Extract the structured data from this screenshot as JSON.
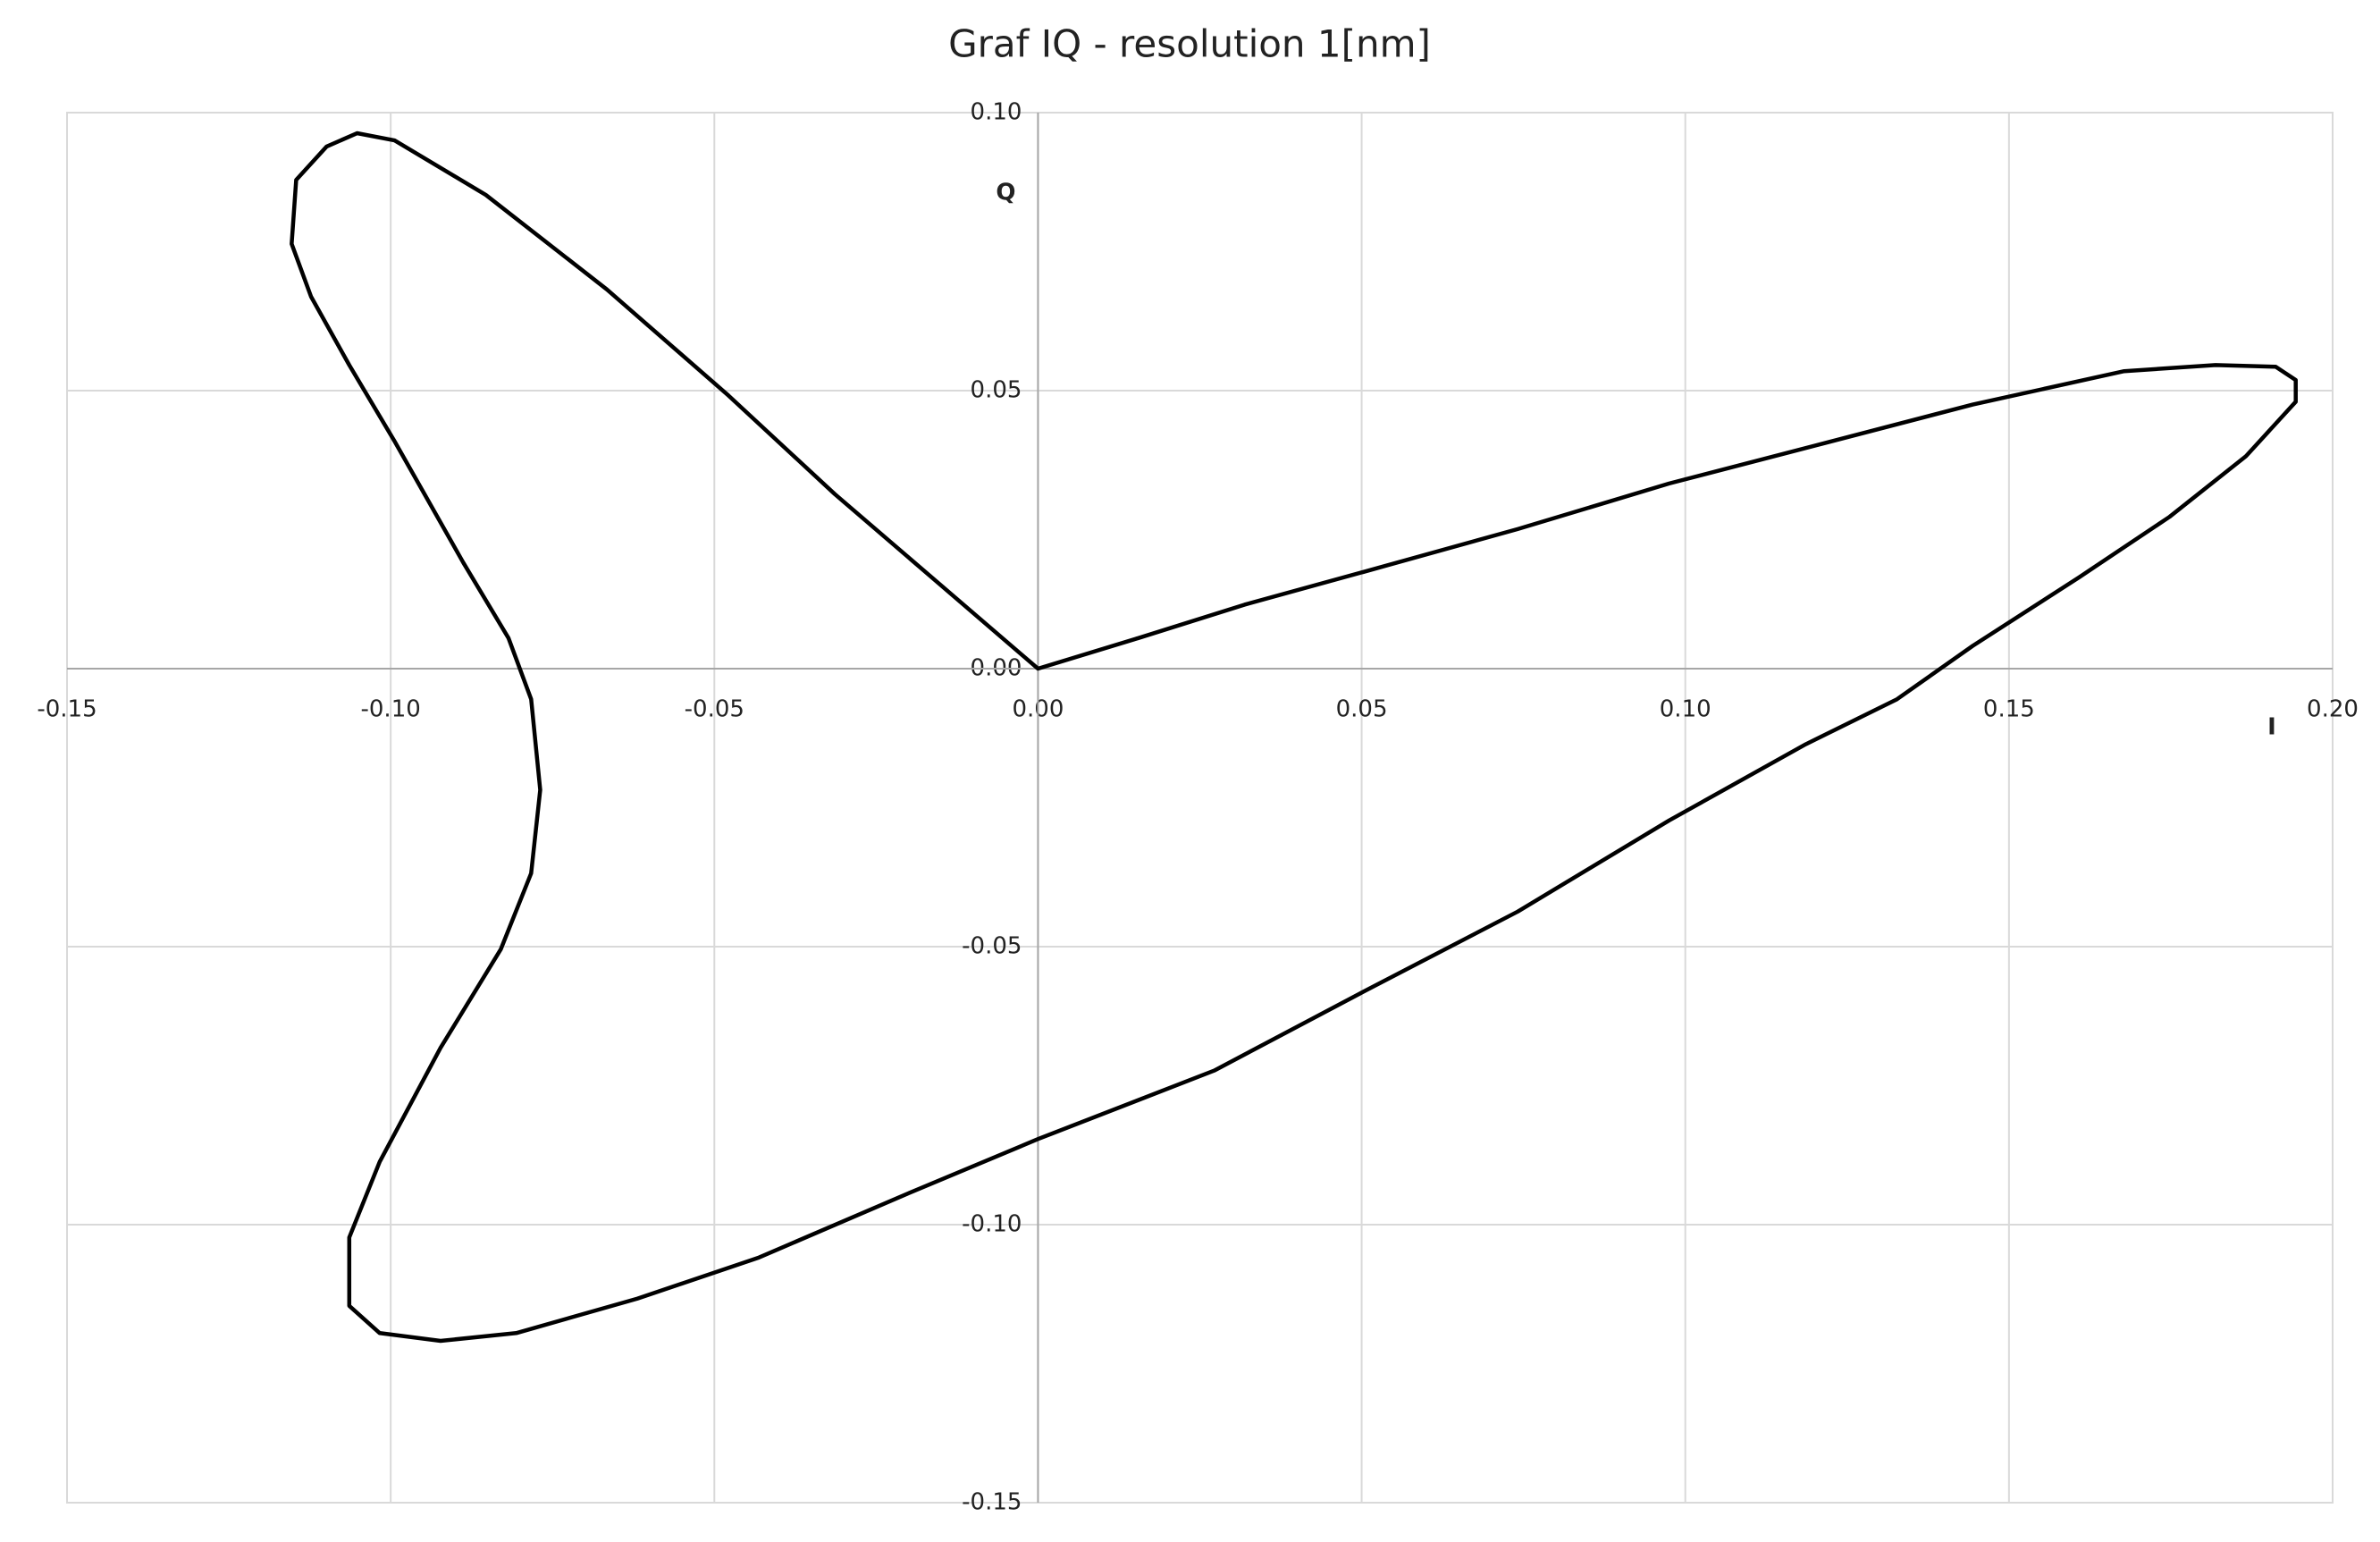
{
  "chart_data": {
    "type": "line",
    "title": "Graf IQ - resolution 1[nm]",
    "x_label": "I",
    "y_label": "Q",
    "color": "#000000",
    "grid": true,
    "xlim": [
      -0.15,
      0.2
    ],
    "ylim": [
      -0.15,
      0.1
    ],
    "xticks": [
      -0.15,
      {
        "value": -0.1,
        "label": "-0.10"
      },
      -0.05,
      {
        "value": 0,
        "label": "0.00"
      },
      0.05,
      {
        "value": 0.1,
        "label": "0.10"
      },
      0.15,
      {
        "value": 0.2,
        "label": "0.20"
      }
    ],
    "yticks": [
      -0.15,
      {
        "value": -0.1,
        "label": "-0.10"
      },
      -0.05,
      {
        "value": 0,
        "label": "0.00"
      },
      0.05,
      {
        "value": 0.1,
        "label": "0.10"
      }
    ],
    "x": [
      0,
      0.0155,
      0.0319,
      0.0506,
      0.0741,
      0.0975,
      0.121,
      0.1444,
      0.1678,
      0.1819,
      0.1912,
      0.1943,
      0.1943,
      0.1866,
      0.1748,
      0.1608,
      0.1444,
      0.1327,
      0.1186,
      0.0975,
      0.0741,
      0.0506,
      0.0272,
      0,
      -0.0197,
      -0.0431,
      -0.0619,
      -0.0806,
      -0.0923,
      -0.1017,
      -0.1064,
      -0.1064,
      -0.1017,
      -0.0923,
      -0.083,
      -0.0783,
      -0.0769,
      -0.0783,
      -0.0818,
      -0.0888,
      -0.0994,
      -0.1064,
      -0.1123,
      -0.1153,
      -0.1146,
      -0.1099,
      -0.1052,
      -0.0994,
      -0.0853,
      -0.0666,
      -0.0478,
      -0.0314,
      -0.015,
      0
    ],
    "values": [
      0,
      0.0055,
      0.0115,
      0.0175,
      0.0251,
      0.0333,
      0.0404,
      0.0475,
      0.0535,
      0.0546,
      0.0543,
      0.0519,
      0.048,
      0.0382,
      0.0273,
      0.0164,
      0.0041,
      -0.0055,
      -0.0136,
      -0.0273,
      -0.0437,
      -0.0579,
      -0.0723,
      -0.0846,
      -0.0942,
      -0.1059,
      -0.1133,
      -0.1195,
      -0.1209,
      -0.1195,
      -0.1146,
      -0.1023,
      -0.0887,
      -0.0682,
      -0.0505,
      -0.0368,
      -0.0218,
      -0.0055,
      0.0055,
      0.0191,
      0.0409,
      0.0546,
      0.0669,
      0.0764,
      0.0879,
      0.0939,
      0.0963,
      0.095,
      0.0852,
      0.0682,
      0.0491,
      0.0314,
      0.015,
      0
    ]
  }
}
